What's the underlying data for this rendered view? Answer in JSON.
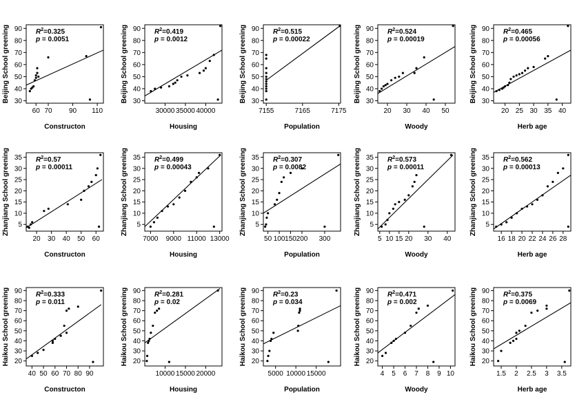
{
  "chart_data": [
    {
      "type": "scatter",
      "city": "Beijing",
      "xlabel": "Constructon",
      "ylabel": "Beijing  School greening",
      "xlim": [
        52,
        115
      ],
      "ylim": [
        28,
        93
      ],
      "xticks": [
        60,
        70,
        90,
        110
      ],
      "yticks": [
        30,
        40,
        50,
        60,
        70,
        80,
        90
      ],
      "r2": "0.325",
      "p": "0.0051",
      "fit": [
        [
          52,
          43
        ],
        [
          115,
          72
        ]
      ],
      "points": [
        [
          55,
          38
        ],
        [
          56,
          40
        ],
        [
          57,
          41
        ],
        [
          58,
          42
        ],
        [
          59,
          47
        ],
        [
          60,
          49
        ],
        [
          60,
          51
        ],
        [
          61,
          53
        ],
        [
          62,
          50
        ],
        [
          61,
          57
        ],
        [
          70,
          66
        ],
        [
          101,
          67
        ],
        [
          104,
          31
        ],
        [
          113,
          91
        ]
      ]
    },
    {
      "type": "scatter",
      "city": "Beijing",
      "xlabel": "Housing",
      "ylabel": "Beijing  School greening",
      "xlim": [
        25000,
        44000
      ],
      "ylim": [
        28,
        93
      ],
      "xticks": [
        30000,
        35000,
        40000
      ],
      "yticks": [
        30,
        40,
        50,
        60,
        70,
        80,
        90
      ],
      "r2": "0.419",
      "p": "0.0012",
      "fit": [
        [
          25000,
          34
        ],
        [
          44000,
          72
        ]
      ],
      "points": [
        [
          26500,
          38
        ],
        [
          27500,
          40
        ],
        [
          29000,
          41
        ],
        [
          31000,
          42
        ],
        [
          32000,
          44
        ],
        [
          32500,
          45
        ],
        [
          33000,
          47
        ],
        [
          34000,
          50
        ],
        [
          35500,
          51
        ],
        [
          38500,
          53
        ],
        [
          39500,
          55
        ],
        [
          40000,
          57
        ],
        [
          41000,
          63
        ],
        [
          42000,
          68
        ],
        [
          43000,
          31
        ],
        [
          43600,
          92
        ]
      ]
    },
    {
      "type": "scatter",
      "city": "Beijing",
      "xlabel": "Population",
      "ylabel": "Beijing  School greening",
      "xlim": [
        7154.2,
        7175.5
      ],
      "ylim": [
        28,
        93
      ],
      "xticks": [
        7155,
        7165,
        7175
      ],
      "yticks": [
        30,
        40,
        50,
        60,
        70,
        80,
        90
      ],
      "r2": "0.515",
      "p": "0.00022",
      "fit": [
        [
          7155,
          47
        ],
        [
          7175.3,
          92
        ]
      ],
      "points": [
        [
          7155,
          38
        ],
        [
          7155,
          40
        ],
        [
          7155,
          42
        ],
        [
          7155,
          44
        ],
        [
          7155,
          46
        ],
        [
          7155,
          48
        ],
        [
          7155,
          50
        ],
        [
          7155,
          53
        ],
        [
          7155,
          57
        ],
        [
          7155,
          65
        ],
        [
          7155,
          68
        ],
        [
          7155,
          31
        ],
        [
          7175.3,
          92
        ]
      ]
    },
    {
      "type": "scatter",
      "city": "Beijing",
      "xlabel": "Woody",
      "ylabel": "Beijing  School greening",
      "xlim": [
        15,
        55
      ],
      "ylim": [
        28,
        93
      ],
      "xticks": [
        20,
        30,
        40,
        50
      ],
      "yticks": [
        30,
        40,
        50,
        60,
        70,
        80,
        90
      ],
      "r2": "0.524",
      "p": "0.00019",
      "fit": [
        [
          15,
          36
        ],
        [
          55,
          75
        ]
      ],
      "points": [
        [
          16,
          38
        ],
        [
          17,
          40
        ],
        [
          18,
          42
        ],
        [
          19,
          43
        ],
        [
          20,
          44
        ],
        [
          22,
          47
        ],
        [
          24,
          49
        ],
        [
          26,
          50
        ],
        [
          28,
          53
        ],
        [
          34,
          53
        ],
        [
          35,
          57
        ],
        [
          39,
          66
        ],
        [
          44,
          31
        ],
        [
          54,
          92
        ]
      ]
    },
    {
      "type": "scatter",
      "city": "Beijing",
      "xlabel": "Herb age",
      "ylabel": "Beijing  School greening",
      "xlim": [
        16,
        43
      ],
      "ylim": [
        28,
        93
      ],
      "xticks": [
        20,
        25,
        30,
        35,
        40
      ],
      "yticks": [
        30,
        40,
        50,
        60,
        70,
        80,
        90
      ],
      "r2": "0.465",
      "p": "0.00056",
      "fit": [
        [
          16,
          37
        ],
        [
          43,
          72
        ]
      ],
      "points": [
        [
          17,
          38
        ],
        [
          18,
          39
        ],
        [
          19,
          40
        ],
        [
          19.5,
          41
        ],
        [
          20,
          42
        ],
        [
          21,
          43
        ],
        [
          21.5,
          45
        ],
        [
          22,
          48
        ],
        [
          23,
          50
        ],
        [
          24,
          51
        ],
        [
          25,
          52
        ],
        [
          26,
          53
        ],
        [
          27,
          55
        ],
        [
          28,
          57
        ],
        [
          30,
          58
        ],
        [
          34,
          65
        ],
        [
          35,
          67
        ],
        [
          38,
          31
        ],
        [
          42,
          92
        ]
      ]
    },
    {
      "type": "scatter",
      "city": "Zhanjiang",
      "xlabel": "Constructon",
      "ylabel": "Zhanjiang  School greening",
      "xlim": [
        13,
        65
      ],
      "ylim": [
        2,
        37
      ],
      "xticks": [
        20,
        30,
        40,
        50,
        60
      ],
      "yticks": [
        5,
        10,
        15,
        20,
        25,
        30,
        35
      ],
      "r2": "0.57",
      "p": "0.00011",
      "fit": [
        [
          13,
          3.5
        ],
        [
          64,
          25
        ]
      ],
      "points": [
        [
          14,
          4
        ],
        [
          15,
          3.5
        ],
        [
          16,
          5
        ],
        [
          17,
          6
        ],
        [
          25,
          11
        ],
        [
          28,
          12
        ],
        [
          41,
          14
        ],
        [
          50,
          16
        ],
        [
          52,
          20
        ],
        [
          55,
          22
        ],
        [
          57,
          24
        ],
        [
          60,
          27
        ],
        [
          61,
          30
        ],
        [
          62,
          4
        ],
        [
          63,
          36
        ]
      ]
    },
    {
      "type": "scatter",
      "city": "Zhanjiang",
      "xlabel": "Housing",
      "ylabel": "Zhanjiang  School greening",
      "xlim": [
        6500,
        13200
      ],
      "ylim": [
        2,
        37
      ],
      "xticks": [
        7000,
        9000,
        11000,
        13000
      ],
      "yticks": [
        5,
        10,
        15,
        20,
        25,
        30,
        35
      ],
      "r2": "0.499",
      "p": "0.00043",
      "fit": [
        [
          6500,
          4
        ],
        [
          13100,
          36
        ]
      ],
      "points": [
        [
          7000,
          4
        ],
        [
          7300,
          6
        ],
        [
          7600,
          8
        ],
        [
          8000,
          11
        ],
        [
          8500,
          13
        ],
        [
          9000,
          14
        ],
        [
          9500,
          17
        ],
        [
          10000,
          20
        ],
        [
          10500,
          24
        ],
        [
          11000,
          26
        ],
        [
          11200,
          28
        ],
        [
          12000,
          30
        ],
        [
          12500,
          4
        ],
        [
          13000,
          36
        ]
      ]
    },
    {
      "type": "scatter",
      "city": "Zhanjiang",
      "xlabel": "Population",
      "ylabel": "Zhanjiang  School greening",
      "xlim": [
        30,
        370
      ],
      "ylim": [
        2,
        37
      ],
      "xticks": [
        50,
        100,
        150,
        200,
        300
      ],
      "yticks": [
        5,
        10,
        15,
        20,
        25,
        30,
        35
      ],
      "r2": "0.307",
      "p": "0.0082",
      "fit": [
        [
          30,
          10
        ],
        [
          370,
          32
        ]
      ],
      "points": [
        [
          38,
          4
        ],
        [
          42,
          5
        ],
        [
          45,
          8
        ],
        [
          50,
          10
        ],
        [
          80,
          14
        ],
        [
          90,
          16
        ],
        [
          100,
          19
        ],
        [
          110,
          24
        ],
        [
          120,
          26
        ],
        [
          150,
          28
        ],
        [
          200,
          30
        ],
        [
          300,
          4
        ],
        [
          360,
          36
        ]
      ]
    },
    {
      "type": "scatter",
      "city": "Zhanjiang",
      "xlabel": "Woody",
      "ylabel": "Zhanjiang  School greening",
      "xlim": [
        4,
        44
      ],
      "ylim": [
        2,
        37
      ],
      "xticks": [
        5,
        10,
        15,
        20,
        30,
        40
      ],
      "yticks": [
        5,
        10,
        15,
        20,
        25,
        30,
        35
      ],
      "r2": "0.573",
      "p": "0.00011",
      "fit": [
        [
          4,
          3
        ],
        [
          43,
          36
        ]
      ],
      "points": [
        [
          6,
          4
        ],
        [
          8,
          5
        ],
        [
          9,
          7
        ],
        [
          10,
          10
        ],
        [
          12,
          12
        ],
        [
          13,
          14
        ],
        [
          15,
          15
        ],
        [
          18,
          16
        ],
        [
          20,
          18
        ],
        [
          22,
          22
        ],
        [
          23,
          24
        ],
        [
          24,
          27
        ],
        [
          28,
          4
        ],
        [
          42,
          36
        ]
      ]
    },
    {
      "type": "scatter",
      "city": "Zhanjiang",
      "xlabel": "Herb age",
      "ylabel": "Zhanjiang  School greening",
      "xlim": [
        14.5,
        29.5
      ],
      "ylim": [
        2,
        37
      ],
      "xticks": [
        16,
        18,
        20,
        22,
        24,
        26,
        28
      ],
      "yticks": [
        5,
        10,
        15,
        20,
        25,
        30,
        35
      ],
      "r2": "0.562",
      "p": "0.00013",
      "fit": [
        [
          14.5,
          3
        ],
        [
          29.5,
          27
        ]
      ],
      "points": [
        [
          15,
          4
        ],
        [
          16,
          5
        ],
        [
          17,
          6
        ],
        [
          18,
          8
        ],
        [
          19,
          10
        ],
        [
          20,
          12
        ],
        [
          21,
          13
        ],
        [
          22,
          14
        ],
        [
          23,
          16
        ],
        [
          24,
          18
        ],
        [
          25,
          22
        ],
        [
          26,
          24
        ],
        [
          27,
          28
        ],
        [
          28,
          30
        ],
        [
          29,
          4
        ],
        [
          29,
          36
        ]
      ]
    },
    {
      "type": "scatter",
      "city": "Haikou",
      "xlabel": "Constructon",
      "ylabel": "Haikou  School greening",
      "xlim": [
        35,
        102
      ],
      "ylim": [
        15,
        93
      ],
      "xticks": [
        40,
        50,
        60,
        70,
        80,
        90
      ],
      "yticks": [
        20,
        30,
        40,
        50,
        60,
        70,
        80,
        90
      ],
      "r2": "0.333",
      "p": "0.011",
      "fit": [
        [
          35,
          22
        ],
        [
          100,
          76
        ]
      ],
      "points": [
        [
          40,
          25
        ],
        [
          45,
          28
        ],
        [
          50,
          31
        ],
        [
          58,
          38
        ],
        [
          58,
          40
        ],
        [
          60,
          42
        ],
        [
          65,
          45
        ],
        [
          68,
          55
        ],
        [
          70,
          48
        ],
        [
          70,
          70
        ],
        [
          72,
          72
        ],
        [
          80,
          74
        ],
        [
          93,
          19
        ],
        [
          100,
          90
        ]
      ]
    },
    {
      "type": "scatter",
      "city": "Haikou",
      "xlabel": "Housing",
      "ylabel": "Haikou  School greening",
      "xlim": [
        5000,
        24000
      ],
      "ylim": [
        15,
        93
      ],
      "xticks": [
        10000,
        15000,
        20000
      ],
      "yticks": [
        20,
        30,
        40,
        50,
        60,
        70,
        80,
        90
      ],
      "r2": "0.281",
      "p": "0.02",
      "fit": [
        [
          5000,
          38
        ],
        [
          23500,
          92
        ]
      ],
      "points": [
        [
          5500,
          20
        ],
        [
          5600,
          25
        ],
        [
          5800,
          38
        ],
        [
          6000,
          40
        ],
        [
          6200,
          42
        ],
        [
          6500,
          48
        ],
        [
          7000,
          55
        ],
        [
          7500,
          68
        ],
        [
          8000,
          70
        ],
        [
          8500,
          72
        ],
        [
          11000,
          19
        ],
        [
          23000,
          90
        ]
      ]
    },
    {
      "type": "scatter",
      "city": "Haikou",
      "xlabel": "Population",
      "ylabel": "Haikou  School greening",
      "xlim": [
        2000,
        21000
      ],
      "ylim": [
        15,
        93
      ],
      "xticks": [
        5000,
        10000,
        15000
      ],
      "yticks": [
        20,
        30,
        40,
        50,
        60,
        70,
        80,
        90
      ],
      "r2": "0.23",
      "p": "0.034",
      "fit": [
        [
          2000,
          37
        ],
        [
          21000,
          75
        ]
      ],
      "points": [
        [
          3000,
          20
        ],
        [
          3200,
          25
        ],
        [
          3500,
          30
        ],
        [
          3800,
          40
        ],
        [
          4000,
          42
        ],
        [
          4500,
          48
        ],
        [
          10500,
          50
        ],
        [
          10600,
          55
        ],
        [
          10800,
          68
        ],
        [
          11000,
          70
        ],
        [
          11000,
          72
        ],
        [
          18000,
          19
        ],
        [
          20000,
          90
        ]
      ]
    },
    {
      "type": "scatter",
      "city": "Haikou",
      "xlabel": "Woody",
      "ylabel": "Haikou  School greening",
      "xlim": [
        3.6,
        10.4
      ],
      "ylim": [
        15,
        93
      ],
      "xticks": [
        4,
        5,
        6,
        7,
        8,
        9,
        10
      ],
      "yticks": [
        20,
        30,
        40,
        50,
        60,
        70,
        80,
        90
      ],
      "r2": "0.471",
      "p": "0.002",
      "fit": [
        [
          3.6,
          28
        ],
        [
          10.4,
          86
        ]
      ],
      "points": [
        [
          4,
          25
        ],
        [
          4.3,
          28
        ],
        [
          4.8,
          38
        ],
        [
          5,
          40
        ],
        [
          5.2,
          42
        ],
        [
          6,
          48
        ],
        [
          6.5,
          55
        ],
        [
          7,
          68
        ],
        [
          7.2,
          72
        ],
        [
          8,
          75
        ],
        [
          8.5,
          19
        ],
        [
          10.2,
          90
        ]
      ]
    },
    {
      "type": "scatter",
      "city": "Haikou",
      "xlabel": "Herb age",
      "ylabel": "Haikou  School greening",
      "xlim": [
        1.25,
        3.8
      ],
      "ylim": [
        15,
        93
      ],
      "xticks": [
        1.5,
        2.0,
        2.5,
        3.0,
        3.5
      ],
      "yticks": [
        20,
        30,
        40,
        50,
        60,
        70,
        80,
        90
      ],
      "r2": "0.375",
      "p": "0.0069",
      "fit": [
        [
          1.25,
          32
        ],
        [
          3.8,
          78
        ]
      ],
      "points": [
        [
          1.4,
          20
        ],
        [
          1.5,
          30
        ],
        [
          1.8,
          38
        ],
        [
          1.9,
          40
        ],
        [
          2.0,
          42
        ],
        [
          2.0,
          48
        ],
        [
          2.1,
          50
        ],
        [
          2.3,
          55
        ],
        [
          2.5,
          68
        ],
        [
          2.7,
          70
        ],
        [
          3.0,
          72
        ],
        [
          3.0,
          75
        ],
        [
          3.6,
          19
        ],
        [
          3.75,
          90
        ]
      ]
    }
  ]
}
